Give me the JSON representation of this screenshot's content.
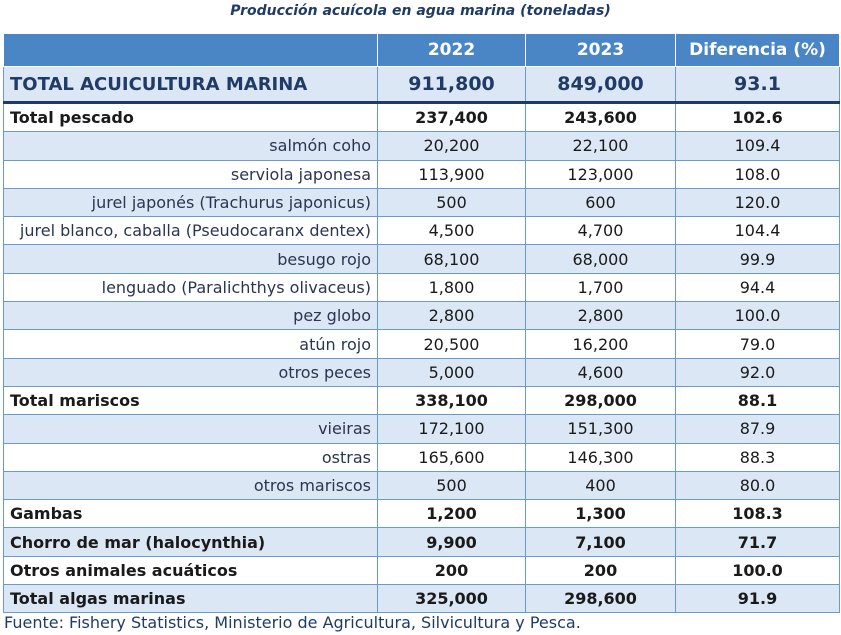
{
  "title": "Producción acuícola en agua marina (toneladas)",
  "headers": [
    "",
    "2022",
    "2023",
    "Diferencia (%)"
  ],
  "rows": [
    {
      "label": "TOTAL ACUICULTURA MARINA",
      "v2022": "911,800",
      "v2023": "849,000",
      "diff": "93.1",
      "kind": "grand"
    },
    {
      "label": "Total pescado",
      "v2022": "237,400",
      "v2023": "243,600",
      "diff": "102.6",
      "kind": "total",
      "shade": "light"
    },
    {
      "label": "salmón coho",
      "v2022": "20,200",
      "v2023": "22,100",
      "diff": "109.4",
      "kind": "sub",
      "shade": "blue"
    },
    {
      "label": "serviola japonesa",
      "v2022": "113,900",
      "v2023": "123,000",
      "diff": "108.0",
      "kind": "sub",
      "shade": "light"
    },
    {
      "label": "jurel japonés (Trachurus japonicus)",
      "v2022": "500",
      "v2023": "600",
      "diff": "120.0",
      "kind": "sub",
      "shade": "blue"
    },
    {
      "label": "jurel blanco, caballa (Pseudocaranx dentex)",
      "v2022": "4,500",
      "v2023": "4,700",
      "diff": "104.4",
      "kind": "sub",
      "shade": "light"
    },
    {
      "label": "besugo rojo",
      "v2022": "68,100",
      "v2023": "68,000",
      "diff": "99.9",
      "kind": "sub",
      "shade": "blue"
    },
    {
      "label": "lenguado (Paralichthys olivaceus)",
      "v2022": "1,800",
      "v2023": "1,700",
      "diff": "94.4",
      "kind": "sub",
      "shade": "light"
    },
    {
      "label": "pez globo",
      "v2022": "2,800",
      "v2023": "2,800",
      "diff": "100.0",
      "kind": "sub",
      "shade": "blue"
    },
    {
      "label": "atún rojo",
      "v2022": "20,500",
      "v2023": "16,200",
      "diff": "79.0",
      "kind": "sub",
      "shade": "light"
    },
    {
      "label": "otros peces",
      "v2022": "5,000",
      "v2023": "4,600",
      "diff": "92.0",
      "kind": "sub",
      "shade": "blue"
    },
    {
      "label": "Total mariscos",
      "v2022": "338,100",
      "v2023": "298,000",
      "diff": "88.1",
      "kind": "total",
      "shade": "light"
    },
    {
      "label": "vieiras",
      "v2022": "172,100",
      "v2023": "151,300",
      "diff": "87.9",
      "kind": "sub",
      "shade": "blue"
    },
    {
      "label": "ostras",
      "v2022": "165,600",
      "v2023": "146,300",
      "diff": "88.3",
      "kind": "sub",
      "shade": "light"
    },
    {
      "label": "otros mariscos",
      "v2022": "500",
      "v2023": "400",
      "diff": "80.0",
      "kind": "sub",
      "shade": "blue"
    },
    {
      "label": "Gambas",
      "v2022": "1,200",
      "v2023": "1,300",
      "diff": "108.3",
      "kind": "total",
      "shade": "light"
    },
    {
      "label": "Chorro de mar (halocynthia)",
      "v2022": "9,900",
      "v2023": "7,100",
      "diff": "71.7",
      "kind": "total",
      "shade": "blue"
    },
    {
      "label": "Otros animales acuáticos",
      "v2022": "200",
      "v2023": "200",
      "diff": "100.0",
      "kind": "total",
      "shade": "light"
    },
    {
      "label": "Total algas marinas",
      "v2022": "325,000",
      "v2023": "298,600",
      "diff": "91.9",
      "kind": "total",
      "shade": "blue"
    }
  ],
  "source": "Fuente: Fishery Statistics, Ministerio de Agricultura, Silvicultura y Pesca.",
  "colors": {
    "header_bg": "#4a86c5",
    "row_blue": "#dbe7f4",
    "title": "#1f3b66"
  }
}
